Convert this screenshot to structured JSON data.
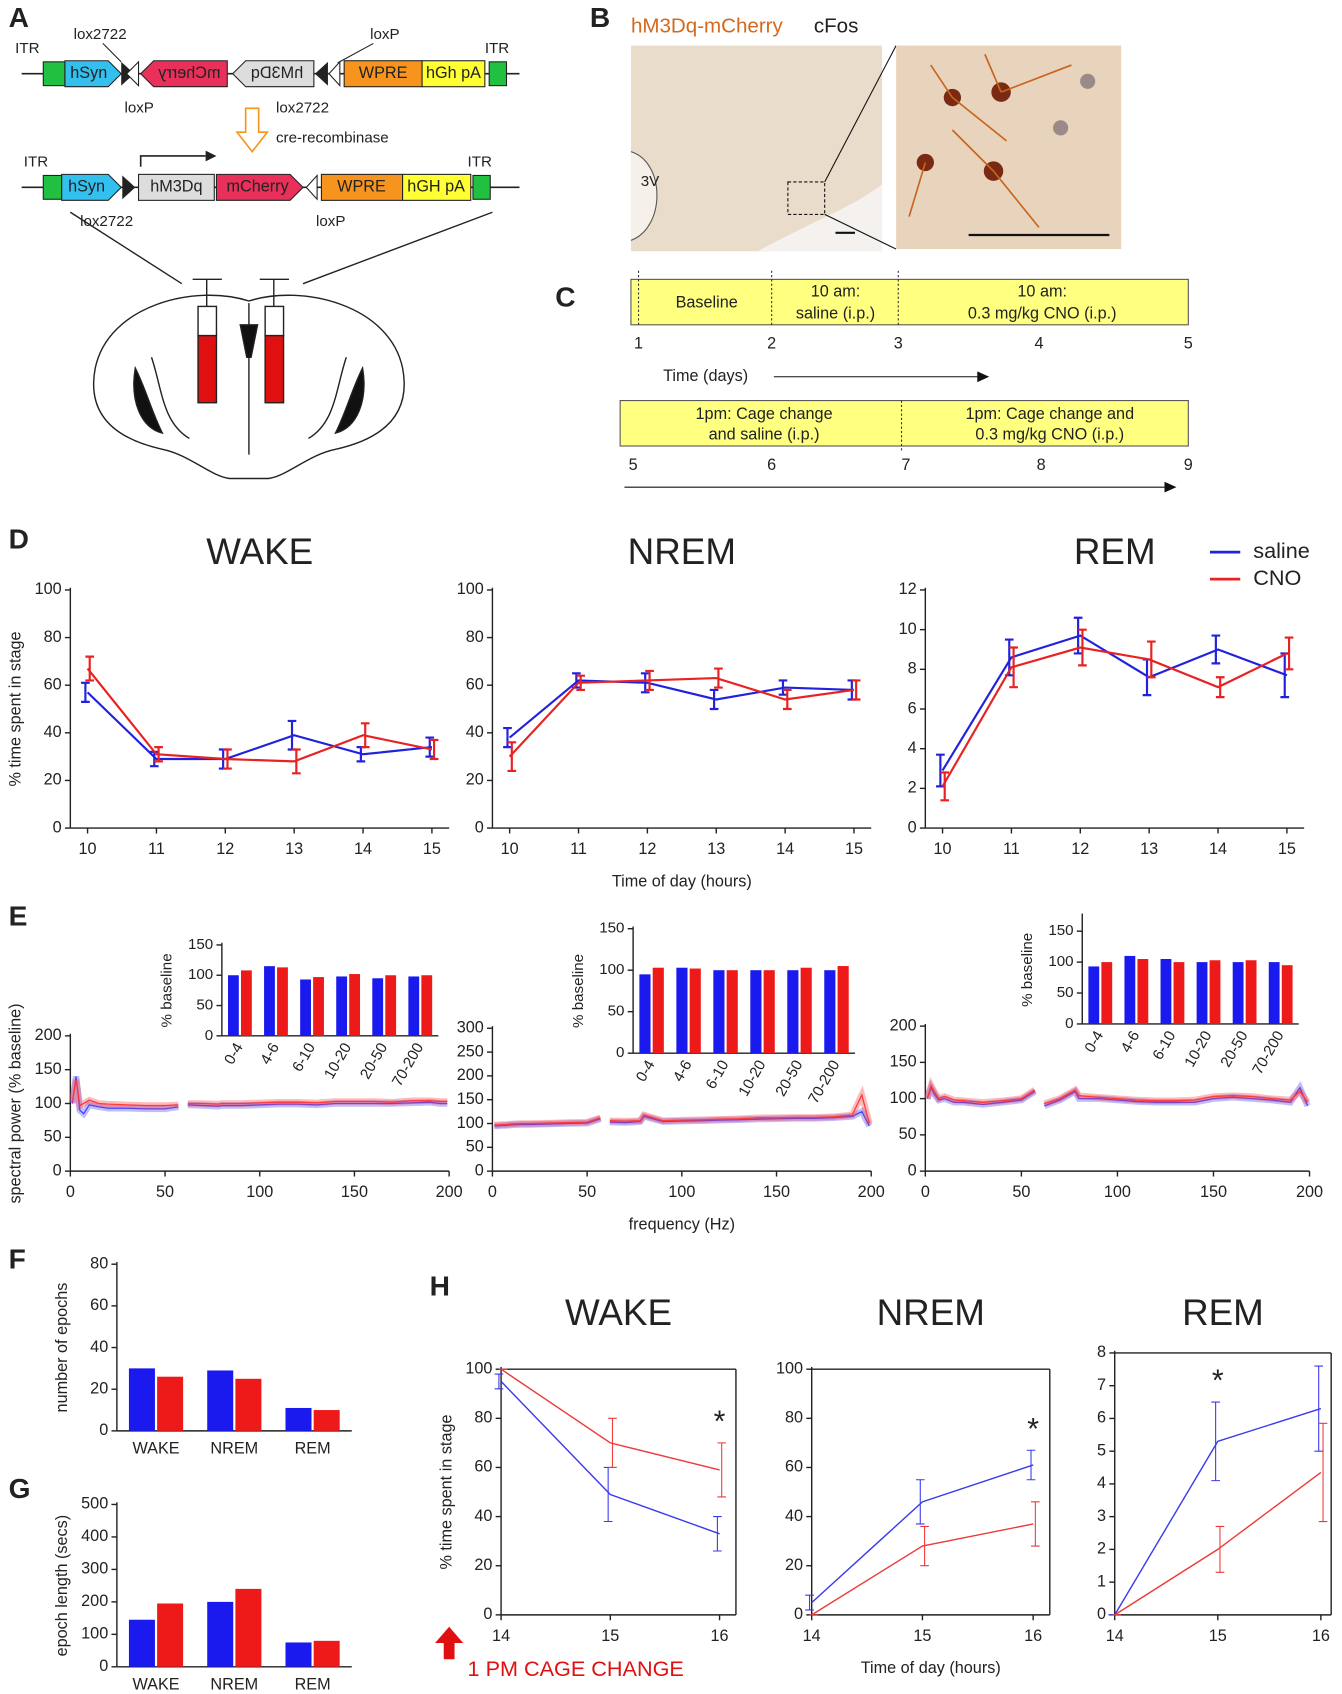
{
  "diagram": {
    "panel_labels": [
      "A",
      "B",
      "C",
      "D",
      "E",
      "F",
      "G",
      "H"
    ],
    "construct1": {
      "itr_left": "ITR",
      "lox2722_top": "lox2722",
      "loxp_top": "loxP",
      "itr_right": "ITR",
      "hsyn": "hSyn",
      "mcherry": "mCherry",
      "hm3dq": "hM3Dq",
      "wpre": "WPRE",
      "hgh": "hGh pA",
      "loxp_bottom": "loxP",
      "lox2722_bottom": "lox2722"
    },
    "recombinase": "cre-recombinase",
    "construct2": {
      "itr_left": "ITR",
      "hsyn": "hSyn",
      "hm3dq": "hM3Dq",
      "mcherry": "mCherry",
      "wpre": "WPRE",
      "hgh": "hGH pA",
      "itr_right": "ITR",
      "lox2722": "lox2722",
      "loxp": "loxP"
    },
    "histology": {
      "stain1": "hM3Dq-mCherry",
      "stain2": "cFos",
      "ventricle": "3V"
    },
    "timeline1": {
      "segments": [
        "Baseline",
        "10 am:",
        "saline (i.p.)",
        "10 am:",
        "0.3 mg/kg CNO (i.p.)"
      ],
      "days": [
        "1",
        "2",
        "3",
        "4",
        "5"
      ],
      "axis": "Time (days)"
    },
    "timeline2": {
      "segments": [
        "1pm: Cage change",
        "and saline (i.p.)",
        "1pm: Cage change and",
        "0.3 mg/kg CNO (i.p.)"
      ],
      "days": [
        "5",
        "6",
        "7",
        "8",
        "9"
      ]
    }
  },
  "chart_data": [
    {
      "type": "line",
      "title": "WAKE",
      "ylabel": "% time spent in stage",
      "x": [
        10,
        11,
        12,
        13,
        14,
        15
      ],
      "xlim": [
        9.75,
        15.25
      ],
      "xticks": [
        10,
        11,
        12,
        13,
        14,
        15
      ],
      "ylim": [
        0,
        100
      ],
      "yticks": [
        0,
        20,
        40,
        60,
        80,
        100
      ],
      "series": [
        {
          "name": "saline",
          "color": "#2222dd",
          "values": [
            57,
            29,
            29,
            39,
            31,
            34
          ],
          "errors": [
            4,
            3,
            4,
            6,
            3,
            4
          ]
        },
        {
          "name": "CNO",
          "color": "#e82222",
          "values": [
            67,
            31,
            29,
            28,
            39,
            33
          ],
          "errors": [
            5,
            3,
            4,
            5,
            5,
            4
          ]
        }
      ]
    },
    {
      "type": "line",
      "title": "NREM",
      "xlabel": "Time of day (hours)",
      "x": [
        10,
        11,
        12,
        13,
        14,
        15
      ],
      "xlim": [
        9.75,
        15.25
      ],
      "xticks": [
        10,
        11,
        12,
        13,
        14,
        15
      ],
      "ylim": [
        0,
        100
      ],
      "yticks": [
        0,
        20,
        40,
        60,
        80,
        100
      ],
      "series": [
        {
          "name": "saline",
          "color": "#2222dd",
          "values": [
            38,
            62,
            61,
            54,
            59,
            58
          ],
          "errors": [
            4,
            3,
            4,
            4,
            3,
            4
          ]
        },
        {
          "name": "CNO",
          "color": "#e82222",
          "values": [
            30,
            61,
            62,
            63,
            54,
            58
          ],
          "errors": [
            6,
            3,
            4,
            4,
            4,
            4
          ]
        }
      ]
    },
    {
      "type": "line",
      "title": "REM",
      "legend": true,
      "x": [
        10,
        11,
        12,
        13,
        14,
        15
      ],
      "xlim": [
        9.75,
        15.25
      ],
      "xticks": [
        10,
        11,
        12,
        13,
        14,
        15
      ],
      "ylim": [
        0,
        12
      ],
      "yticks": [
        0,
        2,
        4,
        6,
        8,
        10,
        12
      ],
      "series": [
        {
          "name": "saline",
          "color": "#2222dd",
          "values": [
            2.9,
            8.6,
            9.7,
            7.6,
            9,
            7.7
          ],
          "errors": [
            0.8,
            0.9,
            0.9,
            0.9,
            0.7,
            1.1
          ]
        },
        {
          "name": "CNO",
          "color": "#e82222",
          "values": [
            2.1,
            8.1,
            9.1,
            8.5,
            7.1,
            8.8
          ],
          "errors": [
            0.7,
            1,
            0.9,
            0.9,
            0.5,
            0.8
          ]
        }
      ]
    },
    {
      "type": "line",
      "ylabel": "spectral power  (% baseline)",
      "x": [
        1,
        3,
        5,
        7,
        10,
        15,
        20,
        30,
        40,
        50,
        57,
        59,
        62,
        70,
        78,
        80,
        90,
        100,
        110,
        120,
        130,
        140,
        150,
        160,
        170,
        180,
        190,
        195,
        199
      ],
      "xlim": [
        0,
        200
      ],
      "xticks": [
        0,
        50,
        100,
        150,
        200
      ],
      "ylim": [
        0,
        200
      ],
      "yticks": [
        0,
        50,
        100,
        150,
        200
      ],
      "series": [
        {
          "name": "saline",
          "color": "#4444ff",
          "values": [
            100,
            140,
            90,
            85,
            98,
            95,
            93,
            93,
            92,
            92,
            95,
            null,
            98,
            97,
            96,
            97,
            97,
            98,
            99,
            99,
            98,
            100,
            100,
            100,
            100,
            101,
            102,
            100,
            100
          ]
        },
        {
          "name": "CNO",
          "color": "#ff3a3a",
          "values": [
            102,
            135,
            97,
            100,
            105,
            100,
            99,
            98,
            97,
            97,
            98,
            null,
            100,
            100,
            99,
            100,
            100,
            101,
            102,
            102,
            101,
            103,
            103,
            103,
            102,
            104,
            104,
            103,
            103
          ]
        }
      ]
    },
    {
      "type": "line",
      "xlabel": "frequency (Hz)",
      "x": [
        1,
        3,
        5,
        7,
        10,
        15,
        20,
        30,
        40,
        50,
        57,
        59,
        62,
        70,
        78,
        80,
        90,
        100,
        110,
        120,
        130,
        140,
        150,
        160,
        170,
        180,
        190,
        195,
        199
      ],
      "xlim": [
        0,
        200
      ],
      "xticks": [
        0,
        50,
        100,
        150,
        200
      ],
      "ylim": [
        0,
        300
      ],
      "yticks": [
        0,
        50,
        100,
        150,
        200,
        250,
        300
      ],
      "series": [
        {
          "name": "saline",
          "color": "#4444ff",
          "values": [
            95,
            95,
            96,
            96,
            97,
            98,
            98,
            99,
            100,
            101,
            110,
            null,
            103,
            102,
            104,
            115,
            104,
            105,
            106,
            107,
            108,
            109,
            110,
            111,
            111,
            112,
            115,
            125,
            95
          ]
        },
        {
          "name": "CNO",
          "color": "#ff3a3a",
          "values": [
            97,
            97,
            98,
            98,
            99,
            100,
            100,
            101,
            102,
            103,
            112,
            null,
            106,
            105,
            106,
            118,
            106,
            107,
            108,
            109,
            110,
            112,
            112,
            113,
            113,
            114,
            118,
            160,
            100
          ]
        }
      ]
    },
    {
      "type": "line",
      "x": [
        1,
        3,
        5,
        7,
        10,
        15,
        20,
        30,
        40,
        50,
        57,
        59,
        62,
        70,
        78,
        80,
        90,
        100,
        110,
        120,
        130,
        140,
        150,
        160,
        170,
        180,
        190,
        195,
        199
      ],
      "xlim": [
        0,
        200
      ],
      "xticks": [
        0,
        50,
        100,
        150,
        200
      ],
      "ylim": [
        0,
        200
      ],
      "yticks": [
        0,
        50,
        100,
        150,
        200
      ],
      "series": [
        {
          "name": "saline",
          "color": "#4444ff",
          "values": [
            100,
            115,
            105,
            98,
            100,
            95,
            95,
            92,
            95,
            98,
            110,
            null,
            90,
            98,
            110,
            100,
            100,
            98,
            96,
            95,
            95,
            95,
            100,
            102,
            100,
            98,
            95,
            115,
            90
          ]
        },
        {
          "name": "CNO",
          "color": "#ff3a3a",
          "values": [
            100,
            118,
            108,
            100,
            103,
            98,
            97,
            95,
            97,
            100,
            112,
            null,
            93,
            100,
            112,
            104,
            102,
            100,
            98,
            97,
            97,
            98,
            103,
            104,
            103,
            100,
            98,
            110,
            95
          ]
        }
      ]
    },
    {
      "type": "bar",
      "ylabel": "% baseline",
      "categories": [
        "0-4",
        "4-6",
        "6-10",
        "10-20",
        "20-50",
        "70-200"
      ],
      "ylim": [
        0,
        150
      ],
      "yticks": [
        0,
        50,
        100,
        150
      ],
      "series": [
        {
          "name": "saline",
          "color": "#1a1aee",
          "values": [
            100,
            115,
            93,
            98,
            95,
            98
          ]
        },
        {
          "name": "CNO",
          "color": "#ee1a1a",
          "values": [
            108,
            113,
            97,
            102,
            100,
            100
          ]
        }
      ]
    },
    {
      "type": "bar",
      "ylabel": "% baseline",
      "categories": [
        "0-4",
        "4-6",
        "6-10",
        "10-20",
        "20-50",
        "70-200"
      ],
      "ylim": [
        0,
        150
      ],
      "yticks": [
        0,
        50,
        100,
        150
      ],
      "series": [
        {
          "name": "saline",
          "color": "#1a1aee",
          "values": [
            95,
            103,
            100,
            100,
            100,
            100
          ]
        },
        {
          "name": "CNO",
          "color": "#ee1a1a",
          "values": [
            103,
            102,
            100,
            100,
            103,
            105
          ]
        }
      ]
    },
    {
      "type": "bar",
      "ylabel": "% baseline",
      "categories": [
        "0-4",
        "4-6",
        "6-10",
        "10-20",
        "20-50",
        "70-200"
      ],
      "ylim": [
        0,
        175
      ],
      "yticks": [
        0,
        50,
        100,
        150
      ],
      "series": [
        {
          "name": "saline",
          "color": "#1a1aee",
          "values": [
            93,
            110,
            105,
            100,
            100,
            100
          ]
        },
        {
          "name": "CNO",
          "color": "#ee1a1a",
          "values": [
            100,
            105,
            100,
            103,
            103,
            95
          ]
        }
      ]
    },
    {
      "type": "bar",
      "ylabel": "number of epochs",
      "categories": [
        "WAKE",
        "NREM",
        "REM"
      ],
      "ylim": [
        0,
        80
      ],
      "yticks": [
        0,
        20,
        40,
        60,
        80
      ],
      "series": [
        {
          "name": "saline",
          "color": "#1a1aee",
          "values": [
            30,
            29,
            11
          ]
        },
        {
          "name": "CNO",
          "color": "#ee1a1a",
          "values": [
            26,
            25,
            10
          ]
        }
      ]
    },
    {
      "type": "bar",
      "ylabel": "epoch length (secs)",
      "categories": [
        "WAKE",
        "NREM",
        "REM"
      ],
      "ylim": [
        0,
        500
      ],
      "yticks": [
        0,
        100,
        200,
        300,
        400,
        500
      ],
      "series": [
        {
          "name": "saline",
          "color": "#1a1aee",
          "values": [
            145,
            200,
            75
          ]
        },
        {
          "name": "CNO",
          "color": "#ee1a1a",
          "values": [
            195,
            240,
            80
          ]
        }
      ]
    },
    {
      "type": "line",
      "title": "WAKE",
      "ylabel": "% time spent in stage",
      "note": "1 PM CAGE CHANGE",
      "annotation": {
        "text": "*",
        "x": 16
      },
      "box": true,
      "x": [
        14,
        15,
        16
      ],
      "xlim": [
        14,
        16.15
      ],
      "xticks": [
        14,
        15,
        16
      ],
      "ylim": [
        0,
        100
      ],
      "yticks": [
        0,
        20,
        40,
        60,
        80,
        100
      ],
      "series": [
        {
          "name": "saline",
          "color": "#3a3aee",
          "values": [
            95,
            49,
            33
          ],
          "errors": [
            3,
            11,
            7
          ]
        },
        {
          "name": "CNO",
          "color": "#ee3a3a",
          "values": [
            100,
            70,
            59
          ],
          "errors": [
            0,
            10,
            11
          ]
        }
      ]
    },
    {
      "type": "line",
      "title": "NREM",
      "xlabel": "Time of day (hours)",
      "annotation": {
        "text": "*",
        "x": 16
      },
      "box": true,
      "x": [
        14,
        15,
        16
      ],
      "xlim": [
        14,
        16.15
      ],
      "xticks": [
        14,
        15,
        16
      ],
      "ylim": [
        0,
        100
      ],
      "yticks": [
        0,
        20,
        40,
        60,
        80,
        100
      ],
      "series": [
        {
          "name": "saline",
          "color": "#3a3aee",
          "values": [
            5,
            46,
            61
          ],
          "errors": [
            3,
            9,
            6
          ]
        },
        {
          "name": "CNO",
          "color": "#ee3a3a",
          "values": [
            0,
            28,
            37
          ],
          "errors": [
            0,
            8,
            9
          ]
        }
      ]
    },
    {
      "type": "line",
      "title": "REM",
      "annotation": {
        "text": "*",
        "x": 15
      },
      "box": true,
      "x": [
        14,
        15,
        16
      ],
      "xlim": [
        14,
        16.1
      ],
      "xticks": [
        14,
        15,
        16
      ],
      "ylim": [
        0,
        8
      ],
      "yticks": [
        0,
        1,
        2,
        3,
        4,
        5,
        6,
        7,
        8
      ],
      "series": [
        {
          "name": "saline",
          "color": "#3a3aee",
          "values": [
            0,
            5.3,
            6.3
          ],
          "errors": [
            0,
            1.2,
            1.3
          ]
        },
        {
          "name": "CNO",
          "color": "#ee3a3a",
          "values": [
            0,
            2,
            4.35
          ],
          "errors": [
            0,
            0.7,
            1.5
          ]
        }
      ]
    }
  ]
}
